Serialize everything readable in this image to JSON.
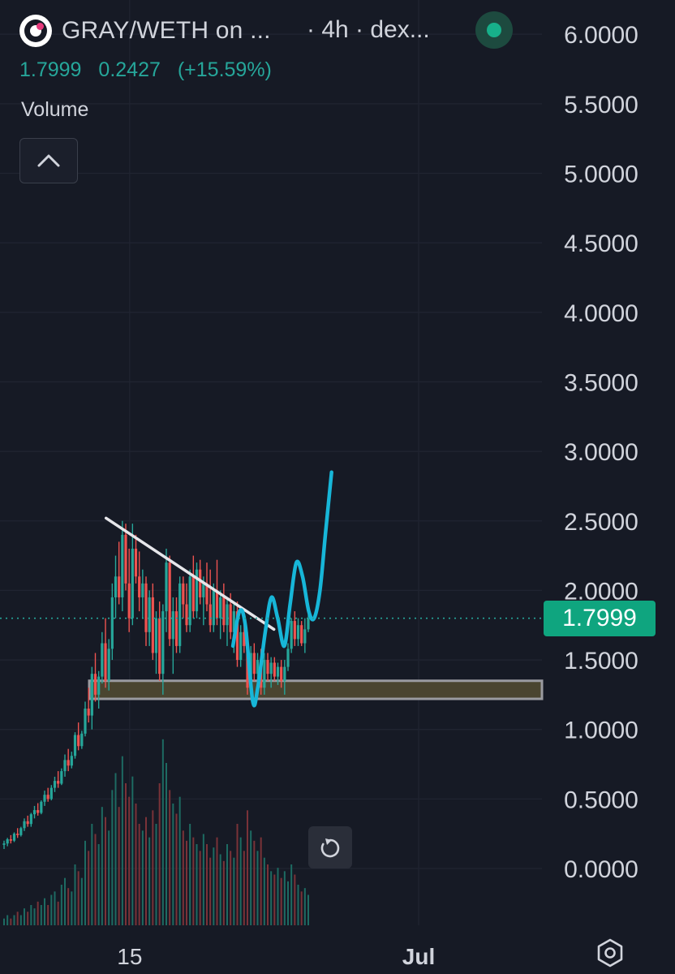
{
  "header": {
    "symbol": "GRAY/WETH on ...",
    "meta": "· 4h · dex...",
    "price": "1.7999",
    "change": "0.2427",
    "change_pct": "(+15.59%)",
    "volume_label": "Volume"
  },
  "colors": {
    "background": "#161a25",
    "up": "#26a69a",
    "down": "#ef5350",
    "accent_cyan": "#17b6d8",
    "price_tag": "#0fa57f",
    "support_zone": "#4a4530"
  },
  "icons": {
    "collapse": "chevron-up-icon",
    "reset": "rotate-ccw-icon",
    "settings": "hexagon-gear-icon"
  },
  "chart_data": {
    "type": "candlestick",
    "symbol": "GRAY/WETH",
    "interval": "4h",
    "y_ticks": [
      "6.0000",
      "5.5000",
      "5.0000",
      "4.5000",
      "4.0000",
      "3.5000",
      "3.0000",
      "2.5000",
      "2.0000",
      "1.5000",
      "1.0000",
      "0.5000",
      "0.0000"
    ],
    "ylim": [
      0,
      6
    ],
    "x_ticks": [
      {
        "label": "15",
        "t": 0.303
      },
      {
        "label": "Jul",
        "t": 1.0
      }
    ],
    "current_price": 1.7999,
    "current_price_label": "1.7999",
    "candles": [
      [
        0.17,
        0.2,
        0.14,
        0.18
      ],
      [
        0.18,
        0.22,
        0.16,
        0.21
      ],
      [
        0.21,
        0.24,
        0.18,
        0.2
      ],
      [
        0.2,
        0.26,
        0.19,
        0.25
      ],
      [
        0.25,
        0.29,
        0.22,
        0.24
      ],
      [
        0.24,
        0.3,
        0.23,
        0.29
      ],
      [
        0.29,
        0.36,
        0.27,
        0.34
      ],
      [
        0.34,
        0.38,
        0.3,
        0.32
      ],
      [
        0.32,
        0.4,
        0.3,
        0.39
      ],
      [
        0.39,
        0.45,
        0.36,
        0.42
      ],
      [
        0.42,
        0.47,
        0.38,
        0.4
      ],
      [
        0.4,
        0.49,
        0.39,
        0.48
      ],
      [
        0.48,
        0.56,
        0.45,
        0.53
      ],
      [
        0.53,
        0.58,
        0.48,
        0.5
      ],
      [
        0.5,
        0.6,
        0.49,
        0.58
      ],
      [
        0.58,
        0.66,
        0.55,
        0.63
      ],
      [
        0.63,
        0.7,
        0.58,
        0.61
      ],
      [
        0.61,
        0.72,
        0.6,
        0.7
      ],
      [
        0.7,
        0.82,
        0.66,
        0.78
      ],
      [
        0.78,
        0.86,
        0.7,
        0.74
      ],
      [
        0.74,
        0.84,
        0.72,
        0.81
      ],
      [
        0.81,
        0.98,
        0.79,
        0.96
      ],
      [
        0.96,
        1.05,
        0.85,
        0.88
      ],
      [
        0.88,
        0.99,
        0.86,
        0.97
      ],
      [
        0.97,
        1.2,
        0.95,
        1.15
      ],
      [
        1.15,
        1.3,
        1.05,
        1.1
      ],
      [
        1.1,
        1.45,
        1.0,
        1.4
      ],
      [
        1.4,
        1.55,
        1.2,
        1.25
      ],
      [
        1.25,
        1.42,
        1.15,
        1.38
      ],
      [
        1.38,
        1.7,
        1.33,
        1.62
      ],
      [
        1.62,
        1.8,
        1.3,
        1.35
      ],
      [
        1.35,
        1.65,
        1.28,
        1.58
      ],
      [
        1.58,
        2.05,
        1.5,
        1.95
      ],
      [
        1.95,
        2.25,
        1.8,
        2.1
      ],
      [
        2.1,
        2.35,
        1.9,
        1.95
      ],
      [
        1.95,
        2.5,
        1.85,
        2.4
      ],
      [
        2.4,
        2.48,
        2.0,
        2.05
      ],
      [
        2.05,
        2.3,
        1.7,
        1.8
      ],
      [
        1.8,
        2.48,
        1.75,
        2.3
      ],
      [
        2.3,
        2.4,
        2.05,
        2.1
      ],
      [
        2.1,
        2.28,
        1.85,
        1.95
      ],
      [
        1.95,
        2.15,
        1.8,
        2.05
      ],
      [
        2.05,
        2.1,
        1.6,
        1.7
      ],
      [
        1.7,
        2.0,
        1.6,
        1.95
      ],
      [
        1.95,
        2.05,
        1.5,
        1.55
      ],
      [
        1.55,
        1.85,
        1.4,
        1.8
      ],
      [
        1.8,
        1.92,
        1.35,
        1.4
      ],
      [
        1.4,
        1.9,
        1.25,
        1.85
      ],
      [
        1.85,
        2.3,
        1.7,
        2.2
      ],
      [
        2.2,
        2.25,
        1.6,
        1.65
      ],
      [
        1.65,
        1.95,
        1.4,
        1.85
      ],
      [
        1.85,
        1.95,
        1.55,
        1.6
      ],
      [
        1.6,
        2.1,
        1.55,
        2.05
      ],
      [
        2.05,
        2.1,
        1.8,
        1.9
      ],
      [
        1.9,
        2.05,
        1.7,
        1.75
      ],
      [
        1.75,
        2.15,
        1.7,
        2.1
      ],
      [
        2.1,
        2.25,
        1.8,
        1.85
      ],
      [
        1.85,
        2.2,
        1.8,
        2.15
      ],
      [
        2.15,
        2.22,
        1.9,
        1.95
      ],
      [
        1.95,
        2.1,
        1.75,
        2.05
      ],
      [
        2.05,
        2.2,
        1.85,
        1.9
      ],
      [
        1.9,
        2.15,
        1.7,
        1.75
      ],
      [
        1.75,
        2.05,
        1.7,
        2.0
      ],
      [
        2.0,
        2.22,
        1.75,
        1.8
      ],
      [
        1.8,
        2.0,
        1.65,
        1.95
      ],
      [
        1.95,
        2.05,
        1.7,
        1.75
      ],
      [
        1.75,
        1.95,
        1.6,
        1.9
      ],
      [
        1.9,
        1.98,
        1.65,
        1.7
      ],
      [
        1.7,
        1.9,
        1.55,
        1.85
      ],
      [
        1.85,
        1.92,
        1.45,
        1.5
      ],
      [
        1.5,
        1.75,
        1.45,
        1.7
      ],
      [
        1.7,
        1.8,
        1.55,
        1.6
      ],
      [
        1.6,
        1.7,
        1.25,
        1.3
      ],
      [
        1.3,
        1.6,
        1.25,
        1.55
      ],
      [
        1.55,
        1.62,
        1.35,
        1.4
      ],
      [
        1.4,
        1.55,
        1.3,
        1.5
      ],
      [
        1.5,
        1.58,
        1.25,
        1.3
      ],
      [
        1.3,
        1.55,
        1.25,
        1.5
      ],
      [
        1.5,
        1.55,
        1.35,
        1.4
      ],
      [
        1.4,
        1.52,
        1.3,
        1.48
      ],
      [
        1.48,
        1.52,
        1.35,
        1.38
      ],
      [
        1.38,
        1.48,
        1.32,
        1.45
      ],
      [
        1.45,
        1.5,
        1.3,
        1.35
      ],
      [
        1.35,
        1.5,
        1.25,
        1.45
      ],
      [
        1.45,
        1.62,
        1.42,
        1.58
      ],
      [
        1.58,
        1.8,
        1.55,
        1.78
      ],
      [
        1.78,
        1.85,
        1.6,
        1.65
      ],
      [
        1.65,
        1.8,
        1.6,
        1.75
      ],
      [
        1.75,
        1.78,
        1.6,
        1.62
      ],
      [
        1.62,
        1.8,
        1.55,
        1.72
      ],
      [
        1.72,
        1.9,
        1.7,
        1.8
      ]
    ],
    "volume": [
      0.02,
      0.03,
      0.02,
      0.03,
      0.04,
      0.03,
      0.05,
      0.04,
      0.06,
      0.05,
      0.07,
      0.06,
      0.08,
      0.06,
      0.09,
      0.1,
      0.07,
      0.12,
      0.14,
      0.11,
      0.1,
      0.18,
      0.16,
      0.14,
      0.25,
      0.22,
      0.3,
      0.27,
      0.24,
      0.35,
      0.32,
      0.28,
      0.4,
      0.45,
      0.35,
      0.5,
      0.42,
      0.38,
      0.44,
      0.36,
      0.3,
      0.28,
      0.32,
      0.26,
      0.34,
      0.3,
      0.42,
      0.55,
      0.48,
      0.4,
      0.36,
      0.33,
      0.38,
      0.28,
      0.25,
      0.3,
      0.26,
      0.24,
      0.22,
      0.27,
      0.24,
      0.2,
      0.23,
      0.26,
      0.21,
      0.19,
      0.24,
      0.22,
      0.2,
      0.3,
      0.26,
      0.22,
      0.34,
      0.28,
      0.25,
      0.22,
      0.26,
      0.2,
      0.18,
      0.16,
      0.15,
      0.17,
      0.14,
      0.16,
      0.13,
      0.18,
      0.15,
      0.12,
      0.1,
      0.11,
      0.09
    ],
    "volume_ylim": [
      0,
      0.6
    ],
    "annotations": {
      "trendline": [
        [
          0.246,
          2.52
        ],
        [
          0.651,
          1.72
        ]
      ],
      "support_zone": {
        "y_top": 1.35,
        "y_bottom": 1.22,
        "t_start": 0.16
      },
      "projection": [
        [
          0.552,
          1.6
        ],
        [
          0.568,
          1.85
        ],
        [
          0.582,
          1.75
        ],
        [
          0.6,
          1.2
        ],
        [
          0.612,
          1.3
        ],
        [
          0.63,
          1.7
        ],
        [
          0.645,
          1.95
        ],
        [
          0.66,
          1.8
        ],
        [
          0.676,
          1.6
        ],
        [
          0.69,
          1.9
        ],
        [
          0.705,
          2.2
        ],
        [
          0.72,
          2.1
        ],
        [
          0.735,
          1.85
        ],
        [
          0.748,
          1.8
        ],
        [
          0.762,
          2.0
        ],
        [
          0.775,
          2.4
        ],
        [
          0.79,
          2.85
        ]
      ]
    }
  }
}
